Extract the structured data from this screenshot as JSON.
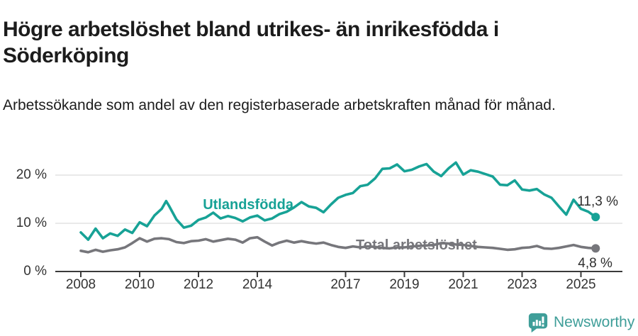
{
  "header": {
    "title": "Högre arbetslöshet bland utrikes- än inrikesfödda i Söderköping",
    "subtitle": "Arbetssökande som andel av den registerbaserade arbetskraften månad för månad."
  },
  "footer": {
    "brand": "Newsworthy",
    "brand_color": "#3f9e99"
  },
  "colors": {
    "foreign_born": "#17a296",
    "total": "#76767b",
    "gridline": "#dcdcdc",
    "axis": "#3a3a3a",
    "text": "#333333"
  },
  "chart_data": {
    "type": "line",
    "title": "",
    "xlabel": "",
    "ylabel": "",
    "x_unit": "decimal_year",
    "y_unit": "percent",
    "xlim": [
      2007.1,
      2026.4
    ],
    "ylim": [
      0,
      24
    ],
    "grid": "horizontal",
    "legend_position": "inline-labels",
    "yticks": [
      {
        "value": 0,
        "label": "0 %"
      },
      {
        "value": 10,
        "label": "10 %"
      },
      {
        "value": 20,
        "label": "20 %"
      }
    ],
    "xticks": [
      {
        "value": 2008,
        "label": "2008"
      },
      {
        "value": 2010,
        "label": "2010"
      },
      {
        "value": 2012,
        "label": "2012"
      },
      {
        "value": 2014,
        "label": "2014"
      },
      {
        "value": 2017,
        "label": "2017"
      },
      {
        "value": 2019,
        "label": "2019"
      },
      {
        "value": 2021,
        "label": "2021"
      },
      {
        "value": 2023,
        "label": "2023"
      },
      {
        "value": 2025,
        "label": "2025"
      }
    ],
    "series": [
      {
        "name": "Utlandsfödda",
        "color": "#17a296",
        "end_label": "11,3 %",
        "end_value": 11.3,
        "label_anchor": {
          "x": 2012.15,
          "y": 13.5
        },
        "points": [
          [
            2008.0,
            8.1
          ],
          [
            2008.25,
            6.6
          ],
          [
            2008.5,
            8.9
          ],
          [
            2008.75,
            6.9
          ],
          [
            2009.0,
            7.9
          ],
          [
            2009.25,
            7.4
          ],
          [
            2009.5,
            8.7
          ],
          [
            2009.75,
            8.0
          ],
          [
            2010.0,
            10.2
          ],
          [
            2010.25,
            9.4
          ],
          [
            2010.5,
            11.6
          ],
          [
            2010.75,
            13.0
          ],
          [
            2010.9,
            14.6
          ],
          [
            2011.0,
            13.6
          ],
          [
            2011.25,
            10.8
          ],
          [
            2011.5,
            9.1
          ],
          [
            2011.75,
            9.5
          ],
          [
            2012.0,
            10.7
          ],
          [
            2012.25,
            11.2
          ],
          [
            2012.5,
            12.2
          ],
          [
            2012.75,
            11.0
          ],
          [
            2013.0,
            11.5
          ],
          [
            2013.25,
            11.1
          ],
          [
            2013.5,
            10.4
          ],
          [
            2013.75,
            11.2
          ],
          [
            2014.0,
            11.6
          ],
          [
            2014.25,
            10.6
          ],
          [
            2014.5,
            11.0
          ],
          [
            2014.75,
            11.9
          ],
          [
            2015.0,
            12.4
          ],
          [
            2015.25,
            13.3
          ],
          [
            2015.5,
            14.4
          ],
          [
            2015.75,
            13.5
          ],
          [
            2016.0,
            13.2
          ],
          [
            2016.25,
            12.3
          ],
          [
            2016.5,
            13.9
          ],
          [
            2016.75,
            15.3
          ],
          [
            2017.0,
            15.9
          ],
          [
            2017.25,
            16.3
          ],
          [
            2017.5,
            17.7
          ],
          [
            2017.75,
            18.0
          ],
          [
            2018.0,
            19.3
          ],
          [
            2018.25,
            21.3
          ],
          [
            2018.5,
            21.4
          ],
          [
            2018.75,
            22.2
          ],
          [
            2019.0,
            20.8
          ],
          [
            2019.25,
            21.1
          ],
          [
            2019.5,
            21.8
          ],
          [
            2019.75,
            22.3
          ],
          [
            2020.0,
            20.7
          ],
          [
            2020.25,
            19.8
          ],
          [
            2020.5,
            21.4
          ],
          [
            2020.75,
            22.6
          ],
          [
            2021.0,
            20.1
          ],
          [
            2021.25,
            21.0
          ],
          [
            2021.5,
            20.7
          ],
          [
            2021.75,
            20.2
          ],
          [
            2022.0,
            19.7
          ],
          [
            2022.25,
            18.0
          ],
          [
            2022.5,
            17.9
          ],
          [
            2022.75,
            18.9
          ],
          [
            2023.0,
            17.0
          ],
          [
            2023.25,
            16.8
          ],
          [
            2023.5,
            17.1
          ],
          [
            2023.75,
            16.0
          ],
          [
            2024.0,
            15.3
          ],
          [
            2024.25,
            13.5
          ],
          [
            2024.5,
            11.8
          ],
          [
            2024.75,
            14.9
          ],
          [
            2025.0,
            13.0
          ],
          [
            2025.25,
            12.4
          ],
          [
            2025.5,
            11.3
          ]
        ]
      },
      {
        "name": "Total arbetslöshet",
        "color": "#76767b",
        "end_label": "4,8 %",
        "end_value": 4.8,
        "label_anchor": {
          "x": 2017.35,
          "y": 5.2
        },
        "points": [
          [
            2008.0,
            4.3
          ],
          [
            2008.25,
            4.0
          ],
          [
            2008.5,
            4.5
          ],
          [
            2008.75,
            4.1
          ],
          [
            2009.0,
            4.4
          ],
          [
            2009.25,
            4.6
          ],
          [
            2009.5,
            5.0
          ],
          [
            2009.75,
            5.9
          ],
          [
            2010.0,
            6.9
          ],
          [
            2010.25,
            6.2
          ],
          [
            2010.5,
            6.8
          ],
          [
            2010.75,
            6.9
          ],
          [
            2011.0,
            6.7
          ],
          [
            2011.25,
            6.1
          ],
          [
            2011.5,
            5.9
          ],
          [
            2011.75,
            6.3
          ],
          [
            2012.0,
            6.4
          ],
          [
            2012.25,
            6.7
          ],
          [
            2012.5,
            6.2
          ],
          [
            2012.75,
            6.5
          ],
          [
            2013.0,
            6.8
          ],
          [
            2013.25,
            6.6
          ],
          [
            2013.5,
            6.0
          ],
          [
            2013.75,
            6.9
          ],
          [
            2014.0,
            7.1
          ],
          [
            2014.25,
            6.2
          ],
          [
            2014.5,
            5.4
          ],
          [
            2014.75,
            6.0
          ],
          [
            2015.0,
            6.4
          ],
          [
            2015.25,
            6.0
          ],
          [
            2015.5,
            6.3
          ],
          [
            2015.75,
            6.0
          ],
          [
            2016.0,
            5.8
          ],
          [
            2016.25,
            6.0
          ],
          [
            2016.5,
            5.5
          ],
          [
            2016.75,
            5.1
          ],
          [
            2017.0,
            4.9
          ],
          [
            2017.25,
            5.2
          ],
          [
            2017.5,
            5.0
          ],
          [
            2017.75,
            5.2
          ],
          [
            2018.0,
            5.1
          ],
          [
            2018.25,
            4.9
          ],
          [
            2018.5,
            4.8
          ],
          [
            2018.75,
            5.0
          ],
          [
            2019.0,
            5.0
          ],
          [
            2019.25,
            5.2
          ],
          [
            2019.5,
            5.3
          ],
          [
            2019.75,
            5.4
          ],
          [
            2020.0,
            5.5
          ],
          [
            2020.25,
            5.9
          ],
          [
            2020.5,
            5.8
          ],
          [
            2020.75,
            5.6
          ],
          [
            2021.0,
            5.5
          ],
          [
            2021.25,
            5.3
          ],
          [
            2021.5,
            5.1
          ],
          [
            2021.75,
            5.0
          ],
          [
            2022.0,
            4.9
          ],
          [
            2022.25,
            4.7
          ],
          [
            2022.5,
            4.5
          ],
          [
            2022.75,
            4.6
          ],
          [
            2023.0,
            4.9
          ],
          [
            2023.25,
            5.0
          ],
          [
            2023.5,
            5.3
          ],
          [
            2023.75,
            4.8
          ],
          [
            2024.0,
            4.7
          ],
          [
            2024.25,
            4.9
          ],
          [
            2024.5,
            5.2
          ],
          [
            2024.75,
            5.5
          ],
          [
            2025.0,
            5.1
          ],
          [
            2025.25,
            4.9
          ],
          [
            2025.5,
            4.8
          ]
        ]
      }
    ]
  }
}
